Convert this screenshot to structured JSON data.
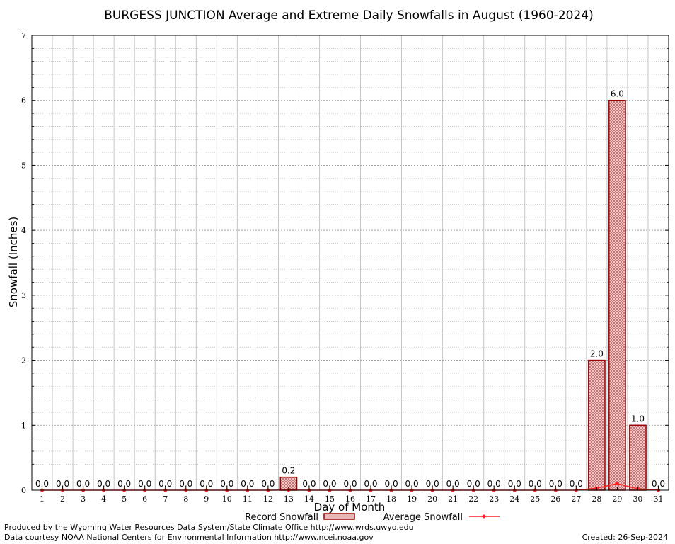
{
  "chart_data": {
    "type": "bar",
    "title": "BURGESS JUNCTION Average and Extreme Daily Snowfalls in August (1960-2024)",
    "xlabel": "Day of Month",
    "ylabel": "Snowfall (Inches)",
    "ylim": [
      0,
      7
    ],
    "y_ticks": [
      "0",
      "1",
      "2",
      "3",
      "4",
      "5",
      "6",
      "7"
    ],
    "categories": [
      "1",
      "2",
      "3",
      "4",
      "5",
      "6",
      "7",
      "8",
      "9",
      "10",
      "11",
      "12",
      "13",
      "14",
      "15",
      "16",
      "17",
      "18",
      "19",
      "20",
      "21",
      "22",
      "23",
      "24",
      "25",
      "26",
      "27",
      "28",
      "29",
      "30",
      "31"
    ],
    "series": [
      {
        "name": "Record Snowfall",
        "values": [
          0,
          0,
          0,
          0,
          0,
          0,
          0,
          0,
          0,
          0,
          0,
          0,
          0.2,
          0,
          0,
          0,
          0,
          0,
          0,
          0,
          0,
          0,
          0,
          0,
          0,
          0,
          0,
          2.0,
          6.0,
          1.0,
          0
        ],
        "labels": [
          "0.0",
          "0.0",
          "0.0",
          "0.0",
          "0.0",
          "0.0",
          "0.0",
          "0.0",
          "0.0",
          "0.0",
          "0.0",
          "0.0",
          "0.2",
          "0.0",
          "0.0",
          "0.0",
          "0.0",
          "0.0",
          "0.0",
          "0.0",
          "0.0",
          "0.0",
          "0.0",
          "0.0",
          "0.0",
          "0.0",
          "0.0",
          "2.0",
          "6.0",
          "1.0",
          "0.0"
        ],
        "color": "#a00000"
      },
      {
        "name": "Average Snowfall",
        "values": [
          0,
          0,
          0,
          0,
          0,
          0,
          0,
          0,
          0,
          0,
          0,
          0,
          0.003,
          0,
          0,
          0,
          0,
          0,
          0,
          0,
          0,
          0,
          0,
          0,
          0,
          0,
          0,
          0.03,
          0.1,
          0.02,
          0
        ],
        "color": "#ff2020"
      }
    ],
    "grid": true,
    "legend_position": "bottom"
  },
  "footer": {
    "produced_by": "Produced by the Wyoming Water Resources Data System/State Climate Office http://www.wrds.uwyo.edu",
    "courtesy": "Data courtesy NOAA National Centers for Environmental Information http://www.ncei.noaa.gov",
    "created": "Created:  26-Sep-2024"
  }
}
